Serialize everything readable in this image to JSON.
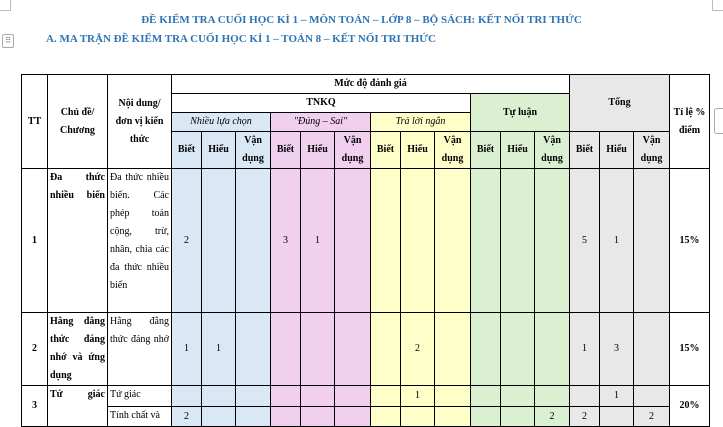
{
  "document": {
    "title": "ĐỀ KIỂM TRA CUỐI HỌC KÌ 1 – MÔN TOÁN – LỚP 8 – BỘ SÁCH: KẾT NỐI TRI THỨC",
    "subtitle": "A. MA TRẬN ĐỀ KIỂM TRA CUỐI HỌC KÌ 1 – TOÁN 8 – KẾT NỐI TRI THỨC"
  },
  "table": {
    "headers": {
      "tt": "TT",
      "chu_de": "Chủ đề/ Chương",
      "noi_dung": "Nội dung/ đơn vị kiến thức",
      "muc_do": "Mức độ đánh giá",
      "tnkq": "TNKQ",
      "tu_luan": "Tự luận",
      "tong": "Tổng",
      "ti_le": "Tỉ lệ % điểm",
      "nhieu_lua_chon": "Nhiều lựa chọn",
      "dung_sai": "\"Đúng – Sai\"",
      "tra_loi_ngan": "Trả lời ngắn",
      "biet": "Biết",
      "hieu": "Hiểu",
      "van_dung": "Vận dụng"
    },
    "rows": [
      {
        "tt": "1",
        "chu_de": "Đa thức nhiều biến",
        "noi_dung": "Đa thức nhiều biến. Các phép toán cộng, trừ, nhân, chia các đa thức nhiều biến",
        "cells": [
          "2",
          "",
          "",
          "3",
          "1",
          "",
          "",
          "",
          "",
          "",
          "",
          "",
          "5",
          "1",
          ""
        ],
        "ti_le": "15%"
      },
      {
        "tt": "2",
        "chu_de": "Hằng đẳng thức đáng nhớ và ứng dụng",
        "noi_dung": "Hằng đẳng thức đáng nhớ",
        "cells": [
          "1",
          "1",
          "",
          "",
          "",
          "",
          "",
          "2",
          "",
          "",
          "",
          "",
          "1",
          "3",
          ""
        ],
        "ti_le": "15%"
      },
      {
        "tt": "3",
        "chu_de": "Tứ giác",
        "noi_dung": "Tứ giác",
        "cells": [
          "",
          "",
          "",
          "",
          "",
          "",
          "",
          "1",
          "",
          "",
          "",
          "",
          "",
          "1",
          ""
        ],
        "ti_le": "20%"
      },
      {
        "noi_dung": "Tính chất và",
        "cells": [
          "2",
          "",
          "",
          "",
          "",
          "",
          "",
          "",
          "",
          "",
          "",
          "2",
          "2",
          "",
          "2"
        ]
      }
    ]
  },
  "colors": {
    "heading": "#2e74b5",
    "multiple_choice": "#dae8f6",
    "true_false": "#f0d0ee",
    "short_answer": "#fefec9",
    "essay": "#dbf0d1",
    "total": "#e8e8e8"
  }
}
